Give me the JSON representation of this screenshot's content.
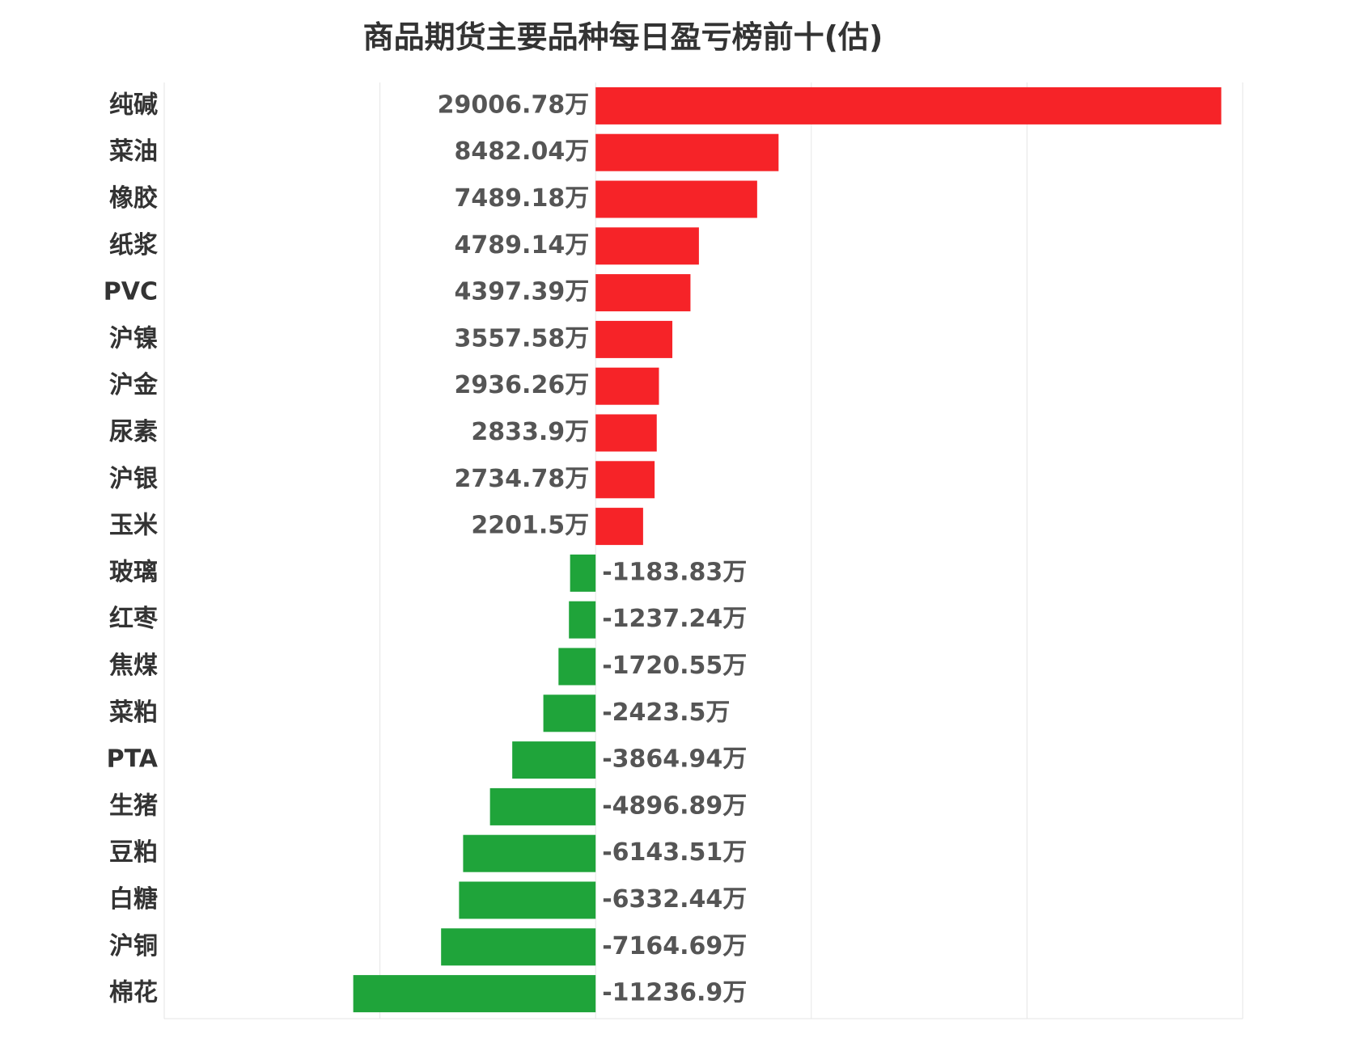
{
  "chart_data": {
    "type": "bar",
    "orientation": "horizontal",
    "title": "商品期货主要品种每日盈亏榜前十(估)",
    "value_unit": "万",
    "categories": [
      "纯碱",
      "菜油",
      "橡胶",
      "纸浆",
      "PVC",
      "沪镍",
      "沪金",
      "尿素",
      "沪银",
      "玉米",
      "玻璃",
      "红枣",
      "焦煤",
      "菜粕",
      "PTA",
      "生猪",
      "豆粕",
      "白糖",
      "沪铜",
      "棉花"
    ],
    "values": [
      29006.78,
      8482.04,
      7489.18,
      4789.14,
      4397.39,
      3557.58,
      2936.26,
      2833.9,
      2734.78,
      2201.5,
      -1183.83,
      -1237.24,
      -1720.55,
      -2423.5,
      -3864.94,
      -4896.89,
      -6143.51,
      -6332.44,
      -7164.69,
      -11236.9
    ],
    "value_labels": [
      "29006.78万",
      "8482.04万",
      "7489.18万",
      "4789.14万",
      "4397.39万",
      "3557.58万",
      "2936.26万",
      "2833.9万",
      "2734.78万",
      "2201.5万",
      "-1183.83万",
      "-1237.24万",
      "-1720.55万",
      "-2423.5万",
      "-3864.94万",
      "-4896.89万",
      "-6143.51万",
      "-6332.44万",
      "-7164.69万",
      "-11236.9万"
    ],
    "xlim": [
      -20000,
      30000
    ],
    "grid": true,
    "colors": {
      "positive": "#f62328",
      "negative": "#1fa43a",
      "grid": "#e6e6e6"
    }
  }
}
